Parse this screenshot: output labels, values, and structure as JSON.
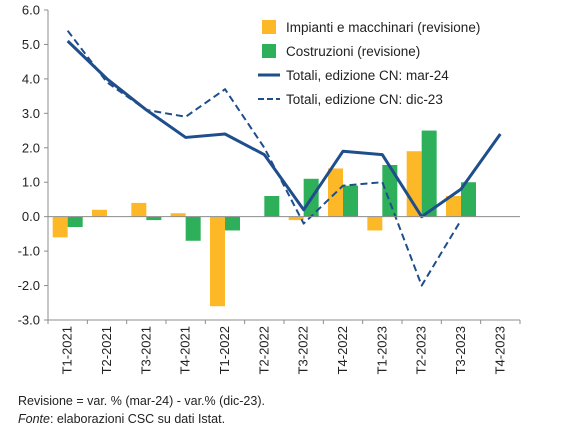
{
  "chart_data": {
    "type": "bar+line",
    "categories": [
      "T1-2021",
      "T2-2021",
      "T3-2021",
      "T4-2021",
      "T1-2022",
      "T2-2022",
      "T3-2022",
      "T4-2022",
      "T1-2023",
      "T2-2023",
      "T3-2023",
      "T4-2023"
    ],
    "ylim": [
      -3.0,
      6.0
    ],
    "yticks": [
      -3.0,
      -2.0,
      -1.0,
      0.0,
      1.0,
      2.0,
      3.0,
      4.0,
      5.0,
      6.0
    ],
    "grid": false,
    "legend_position": "top-right",
    "series": [
      {
        "name": "Impianti e macchinari (revisione)",
        "kind": "bar",
        "color": "#FDB827",
        "values": [
          -0.6,
          0.2,
          0.4,
          0.1,
          -2.6,
          0.0,
          -0.1,
          1.4,
          -0.4,
          1.9,
          0.6,
          null
        ]
      },
      {
        "name": "Costruzioni (revisione)",
        "kind": "bar",
        "color": "#2EB05B",
        "values": [
          -0.3,
          0.0,
          -0.1,
          -0.7,
          -0.4,
          0.6,
          1.1,
          0.9,
          1.5,
          2.5,
          1.0,
          null
        ]
      },
      {
        "name": "Totali, edizione CN: mar-24",
        "kind": "line",
        "style": "solid",
        "color": "#1F4E8C",
        "values": [
          5.1,
          4.0,
          3.1,
          2.3,
          2.4,
          1.8,
          0.2,
          1.9,
          1.8,
          0.0,
          0.8,
          2.4
        ]
      },
      {
        "name": "Totali, edizione CN: dic-23",
        "kind": "line",
        "style": "dashed",
        "color": "#1F4E8C",
        "values": [
          5.4,
          3.9,
          3.1,
          2.9,
          3.7,
          2.0,
          -0.2,
          0.9,
          1.0,
          -2.0,
          -0.1,
          null
        ]
      }
    ]
  },
  "notes": {
    "revision_definition": "Revisione = var. % (mar-24) - var.% (dic-23).",
    "source_label": "Fonte",
    "source_text": ": elaborazioni CSC su dati Istat."
  }
}
